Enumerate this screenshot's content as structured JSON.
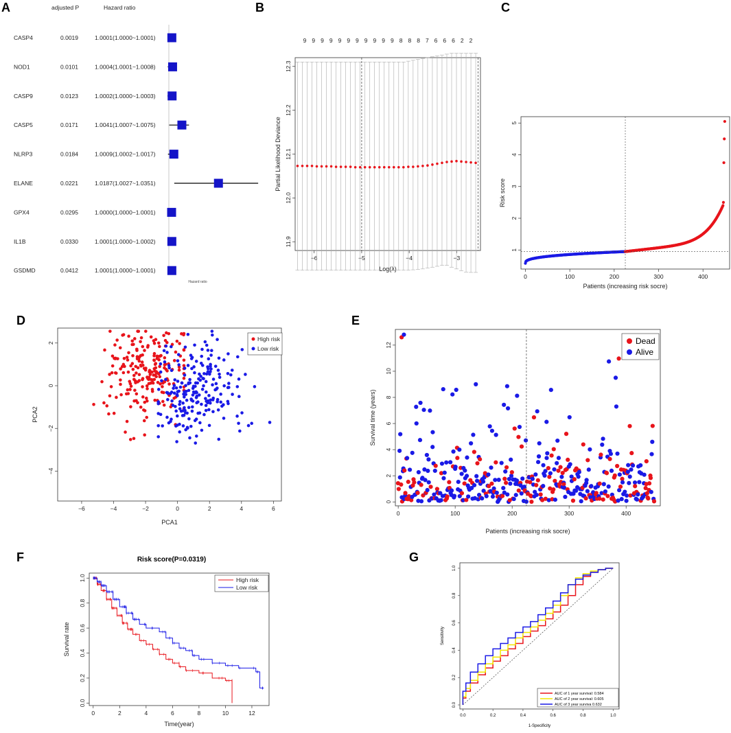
{
  "panel_letters": [
    "A",
    "B",
    "C",
    "D",
    "E",
    "F",
    "G"
  ],
  "colors": {
    "red": "#e8141b",
    "blue": "#1a1ae6",
    "gray": "#888888",
    "yellow": "#f2e600",
    "forest_box": "#1414c8"
  },
  "chart_data": [
    {
      "panel": "A",
      "type": "table",
      "columns": [
        "",
        "adjusted P",
        "Hazard ratio"
      ],
      "rows": [
        {
          "gene": "CASP4",
          "p": "0.0019",
          "hr_text": "1.0001(1.0000~1.0001)",
          "hr": 1.0001,
          "low": 1.0,
          "high": 1.0001
        },
        {
          "gene": "NOD1",
          "p": "0.0101",
          "hr_text": "1.0004(1.0001~1.0008)",
          "hr": 1.0004,
          "low": 1.0001,
          "high": 1.0008
        },
        {
          "gene": "CASP9",
          "p": "0.0123",
          "hr_text": "1.0002(1.0000~1.0003)",
          "hr": 1.0002,
          "low": 1.0,
          "high": 1.0003
        },
        {
          "gene": "CASP5",
          "p": "0.0171",
          "hr_text": "1.0041(1.0007~1.0075)",
          "hr": 1.0041,
          "low": 1.0007,
          "high": 1.0075
        },
        {
          "gene": "NLRP3",
          "p": "0.0184",
          "hr_text": "1.0009(1.0002~1.0017)",
          "hr": 1.0009,
          "low": 1.0002,
          "high": 1.0017
        },
        {
          "gene": "ELANE",
          "p": "0.0221",
          "hr_text": "1.0187(1.0027~1.0351)",
          "hr": 1.0187,
          "low": 1.0027,
          "high": 1.0351
        },
        {
          "gene": "GPX4",
          "p": "0.0295",
          "hr_text": "1.0000(1.0000~1.0001)",
          "hr": 1.0,
          "low": 1.0,
          "high": 1.0001
        },
        {
          "gene": "IL1B",
          "p": "0.0330",
          "hr_text": "1.0001(1.0000~1.0002)",
          "hr": 1.0001,
          "low": 1.0,
          "high": 1.0002
        },
        {
          "gene": "GSDMD",
          "p": "0.0412",
          "hr_text": "1.0001(1.0000~1.0001)",
          "hr": 1.0001,
          "low": 1.0,
          "high": 1.0001
        }
      ],
      "xlabel": "Hazard ratio"
    },
    {
      "panel": "B",
      "type": "line",
      "xlabel": "Log(λ)",
      "ylabel": "Partial Likelihood Deviance",
      "xlim": [
        -6.4,
        -2.5
      ],
      "ylim": [
        11.88,
        12.32
      ],
      "xticks": [
        -6,
        -5,
        -4,
        -3
      ],
      "yticks": [
        11.9,
        12.0,
        12.1,
        12.2,
        12.3
      ],
      "top_labels": [
        "9",
        "9",
        "9",
        "9",
        "9",
        "9",
        "9",
        "9",
        "9",
        "9",
        "9",
        "8",
        "8",
        "8",
        "7",
        "6",
        "6",
        "6",
        "2",
        "2"
      ],
      "vlines": [
        -5.0,
        -2.55
      ],
      "x_range": [
        -6.35,
        -2.6
      ],
      "n_points": 38,
      "mean": [
        12.073,
        12.073,
        12.073,
        12.073,
        12.072,
        12.072,
        12.072,
        12.072,
        12.071,
        12.071,
        12.071,
        12.071,
        12.07,
        12.07,
        12.07,
        12.07,
        12.07,
        12.07,
        12.07,
        12.07,
        12.07,
        12.07,
        12.07,
        12.071,
        12.071,
        12.072,
        12.073,
        12.074,
        12.076,
        12.078,
        12.08,
        12.082,
        12.083,
        12.084,
        12.083,
        12.082,
        12.081,
        12.08
      ],
      "upper": [
        12.31,
        12.31,
        12.31,
        12.31,
        12.31,
        12.31,
        12.31,
        12.31,
        12.31,
        12.31,
        12.31,
        12.31,
        12.31,
        12.31,
        12.31,
        12.31,
        12.31,
        12.31,
        12.31,
        12.31,
        12.31,
        12.31,
        12.31,
        12.312,
        12.314,
        12.316,
        12.318,
        12.32,
        12.322,
        12.324,
        12.326,
        12.328,
        12.33,
        12.33,
        12.33,
        12.33,
        12.33,
        12.33
      ],
      "lower": [
        11.835,
        11.835,
        11.835,
        11.835,
        11.835,
        11.835,
        11.835,
        11.835,
        11.835,
        11.835,
        11.835,
        11.835,
        11.835,
        11.835,
        11.835,
        11.835,
        11.835,
        11.835,
        11.835,
        11.835,
        11.835,
        11.835,
        11.835,
        11.835,
        11.836,
        11.837,
        11.838,
        11.84,
        11.842,
        11.844,
        11.846,
        11.846,
        11.842,
        11.838,
        11.834,
        11.831,
        11.83,
        11.83
      ]
    },
    {
      "panel": "C",
      "type": "scatter",
      "xlabel": "Patients (increasing risk socre)",
      "ylabel": "Risk score",
      "xlim": [
        -10,
        460
      ],
      "ylim": [
        0.4,
        5.2
      ],
      "xticks": [
        0,
        100,
        200,
        300,
        400
      ],
      "yticks": [
        1,
        2,
        3,
        4,
        5
      ],
      "n_patients": 450,
      "cutoff_index": 225,
      "cutoff_value": 0.95,
      "min_score": 0.58,
      "top_values": [
        2.4,
        2.5,
        3.75,
        4.5,
        5.05
      ]
    },
    {
      "panel": "D",
      "type": "scatter",
      "xlabel": "PCA1",
      "ylabel": "PCA2",
      "xlim": [
        -7.5,
        6.5
      ],
      "ylim": [
        -5.4,
        2.7
      ],
      "xticks": [
        -6,
        -4,
        -2,
        0,
        2,
        4,
        6
      ],
      "yticks": [
        -4,
        -2,
        0,
        2
      ],
      "legend": [
        "High risk",
        "Low risk"
      ],
      "series": [
        {
          "name": "High risk",
          "center": [
            -2.0,
            0.6
          ],
          "spread": [
            1.3,
            1.1
          ],
          "n": 225
        },
        {
          "name": "Low risk",
          "center": [
            1.4,
            -0.2
          ],
          "spread": [
            1.4,
            1.1
          ],
          "n": 225
        }
      ]
    },
    {
      "panel": "E",
      "type": "scatter",
      "xlabel": "Patients (increasing risk socre)",
      "ylabel": "Survival time (years)",
      "xlim": [
        -5,
        460
      ],
      "ylim": [
        -0.3,
        13.2
      ],
      "xticks": [
        0,
        100,
        200,
        300,
        400
      ],
      "yticks": [
        0,
        2,
        4,
        6,
        8,
        10,
        12
      ],
      "vline": 225,
      "legend": [
        "Dead",
        "Alive"
      ],
      "n_patients": 450
    },
    {
      "panel": "F",
      "type": "line",
      "title": "Risk score(P=0.0319)",
      "xlabel": "Time(year)",
      "ylabel": "Survival rate",
      "xlim": [
        -0.3,
        13.3
      ],
      "ylim": [
        -0.02,
        1.04
      ],
      "xticks": [
        0,
        2,
        4,
        6,
        8,
        10,
        12
      ],
      "yticks": [
        0.0,
        0.2,
        0.4,
        0.6,
        0.8,
        1.0
      ],
      "legend": [
        "High risk",
        "Low risk"
      ],
      "series": [
        {
          "name": "High risk",
          "x": [
            0,
            0.3,
            0.6,
            1.0,
            1.4,
            1.8,
            2.2,
            2.6,
            3.0,
            3.5,
            4.0,
            4.5,
            5.0,
            5.5,
            6.0,
            6.5,
            7.0,
            8.0,
            9.0,
            10.0,
            10.5,
            10.5
          ],
          "y": [
            1.0,
            0.95,
            0.9,
            0.83,
            0.76,
            0.7,
            0.64,
            0.59,
            0.55,
            0.5,
            0.47,
            0.43,
            0.39,
            0.35,
            0.32,
            0.29,
            0.26,
            0.24,
            0.2,
            0.18,
            0.18,
            0.0
          ]
        },
        {
          "name": "Low risk",
          "x": [
            0,
            0.3,
            0.6,
            1.0,
            1.5,
            2.0,
            2.5,
            3.0,
            3.5,
            4.0,
            5.0,
            5.5,
            6.0,
            6.5,
            7.0,
            7.5,
            8.0,
            9.0,
            10.0,
            11.0,
            12.3,
            12.6,
            12.9
          ],
          "y": [
            1.0,
            0.97,
            0.94,
            0.89,
            0.83,
            0.77,
            0.72,
            0.67,
            0.63,
            0.6,
            0.57,
            0.52,
            0.48,
            0.44,
            0.42,
            0.38,
            0.35,
            0.32,
            0.3,
            0.28,
            0.25,
            0.12,
            0.12
          ]
        }
      ]
    },
    {
      "panel": "G",
      "type": "line",
      "xlabel": "1-Specificity",
      "ylabel": "Sensitivity",
      "xlim": [
        -0.02,
        1.04
      ],
      "ylim": [
        -0.03,
        1.04
      ],
      "xticks": [
        0.0,
        0.2,
        0.4,
        0.6,
        0.8,
        1.0
      ],
      "yticks": [
        0.0,
        0.2,
        0.4,
        0.6,
        0.8,
        1.0
      ],
      "legend": [
        "AUC of 1 year survival:  0.584",
        "AUC of 2 year survival:  0.605",
        "AUC of 3 year surviva  0.632"
      ],
      "series": [
        {
          "name": "AUC of 1 year survival:  0.584",
          "auc": 0.584,
          "x": [
            0,
            0.02,
            0.05,
            0.1,
            0.15,
            0.2,
            0.25,
            0.3,
            0.35,
            0.4,
            0.45,
            0.5,
            0.55,
            0.6,
            0.65,
            0.7,
            0.75,
            0.8,
            0.85,
            0.9,
            0.95,
            1.0
          ],
          "y": [
            0,
            0.05,
            0.1,
            0.16,
            0.22,
            0.27,
            0.32,
            0.36,
            0.41,
            0.45,
            0.5,
            0.54,
            0.58,
            0.63,
            0.68,
            0.73,
            0.8,
            0.88,
            0.94,
            0.97,
            0.99,
            1.0
          ]
        },
        {
          "name": "AUC of 2 year survival:  0.605",
          "auc": 0.605,
          "x": [
            0,
            0.02,
            0.05,
            0.1,
            0.15,
            0.2,
            0.25,
            0.3,
            0.35,
            0.4,
            0.45,
            0.5,
            0.55,
            0.6,
            0.65,
            0.7,
            0.75,
            0.8,
            0.85,
            0.9,
            0.95,
            1.0
          ],
          "y": [
            0,
            0.06,
            0.12,
            0.18,
            0.24,
            0.3,
            0.35,
            0.4,
            0.44,
            0.49,
            0.53,
            0.57,
            0.62,
            0.67,
            0.73,
            0.8,
            0.88,
            0.93,
            0.96,
            0.98,
            0.99,
            1.0
          ]
        },
        {
          "name": "AUC of 3 year surviva  0.632",
          "auc": 0.632,
          "x": [
            0,
            0.02,
            0.05,
            0.1,
            0.15,
            0.2,
            0.25,
            0.3,
            0.35,
            0.4,
            0.45,
            0.5,
            0.55,
            0.6,
            0.65,
            0.7,
            0.75,
            0.8,
            0.85,
            0.9,
            0.95,
            1.0
          ],
          "y": [
            0,
            0.1,
            0.16,
            0.24,
            0.3,
            0.36,
            0.41,
            0.45,
            0.49,
            0.53,
            0.57,
            0.61,
            0.66,
            0.71,
            0.76,
            0.82,
            0.88,
            0.92,
            0.95,
            0.97,
            0.99,
            1.0
          ]
        }
      ]
    }
  ]
}
